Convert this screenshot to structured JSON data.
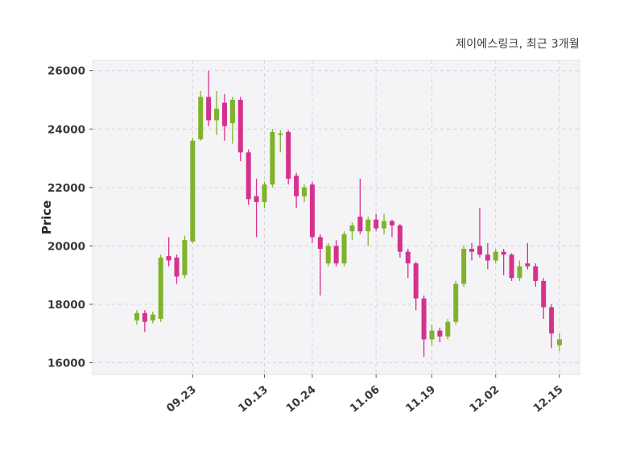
{
  "chart_data": {
    "type": "candlestick",
    "title": "제이에스링크, 최근 3개월",
    "ylabel": "Price",
    "up_color": "#7fb32b",
    "down_color": "#d5318e",
    "grid": true,
    "legend_position": "none",
    "ylim": [
      15600,
      26350
    ],
    "yticks": [
      16000,
      18000,
      20000,
      22000,
      24000,
      26000
    ],
    "xticks": [
      {
        "label": "09.23",
        "index": 7
      },
      {
        "label": "10.13",
        "index": 16
      },
      {
        "label": "10.24",
        "index": 22
      },
      {
        "label": "11.06",
        "index": 30
      },
      {
        "label": "11.19",
        "index": 37
      },
      {
        "label": "12.02",
        "index": 45
      },
      {
        "label": "12.15",
        "index": 53
      }
    ],
    "candles_format": [
      "open",
      "high",
      "low",
      "close"
    ],
    "candles": [
      [
        17450,
        17800,
        17300,
        17700
      ],
      [
        17700,
        17800,
        17050,
        17400
      ],
      [
        17450,
        17750,
        17350,
        17650
      ],
      [
        17500,
        19700,
        17400,
        19600
      ],
      [
        19650,
        20300,
        19300,
        19500
      ],
      [
        19600,
        19700,
        18700,
        18950
      ],
      [
        19000,
        20350,
        18900,
        20200
      ],
      [
        20150,
        23700,
        20100,
        23600
      ],
      [
        23650,
        25300,
        23600,
        25100
      ],
      [
        25100,
        26000,
        24100,
        24300
      ],
      [
        24300,
        25300,
        23800,
        24700
      ],
      [
        24900,
        25200,
        23600,
        24100
      ],
      [
        24200,
        25100,
        23500,
        25000
      ],
      [
        25000,
        25100,
        22900,
        23200
      ],
      [
        23200,
        23300,
        21400,
        21600
      ],
      [
        21700,
        22300,
        20300,
        21500
      ],
      [
        21500,
        22200,
        21300,
        22100
      ],
      [
        22100,
        24000,
        22000,
        23900
      ],
      [
        23800,
        23950,
        23200,
        23850
      ],
      [
        23900,
        23950,
        22100,
        22300
      ],
      [
        22400,
        22500,
        21300,
        21700
      ],
      [
        21700,
        22100,
        21500,
        22000
      ],
      [
        22100,
        22200,
        20100,
        20300
      ],
      [
        20300,
        20400,
        18300,
        19900
      ],
      [
        19400,
        20100,
        19300,
        20000
      ],
      [
        20000,
        20200,
        19300,
        19400
      ],
      [
        19400,
        20500,
        19300,
        20400
      ],
      [
        20500,
        20800,
        20200,
        20700
      ],
      [
        21000,
        22300,
        20400,
        20500
      ],
      [
        20500,
        21000,
        20000,
        20900
      ],
      [
        20900,
        21100,
        20500,
        20600
      ],
      [
        20600,
        21100,
        20400,
        20850
      ],
      [
        20850,
        20900,
        20300,
        20700
      ],
      [
        20700,
        20750,
        19600,
        19800
      ],
      [
        19800,
        19900,
        18900,
        19400
      ],
      [
        19400,
        19450,
        17800,
        18200
      ],
      [
        18200,
        18300,
        16200,
        16800
      ],
      [
        16800,
        17300,
        16600,
        17100
      ],
      [
        17100,
        17200,
        16700,
        16900
      ],
      [
        16900,
        17500,
        16800,
        17400
      ],
      [
        17400,
        18800,
        17300,
        18700
      ],
      [
        18700,
        20000,
        18600,
        19900
      ],
      [
        19900,
        20100,
        19500,
        19800
      ],
      [
        20000,
        21300,
        19600,
        19700
      ],
      [
        19700,
        20100,
        19200,
        19500
      ],
      [
        19500,
        19900,
        19400,
        19800
      ],
      [
        19800,
        19900,
        19000,
        19700
      ],
      [
        19700,
        19750,
        18800,
        18900
      ],
      [
        18900,
        19500,
        18800,
        19300
      ],
      [
        19400,
        20100,
        19200,
        19300
      ],
      [
        19300,
        19400,
        18600,
        18800
      ],
      [
        18800,
        18900,
        17500,
        17900
      ],
      [
        17900,
        18000,
        16500,
        17000
      ],
      [
        16600,
        17000,
        16400,
        16800
      ]
    ]
  }
}
